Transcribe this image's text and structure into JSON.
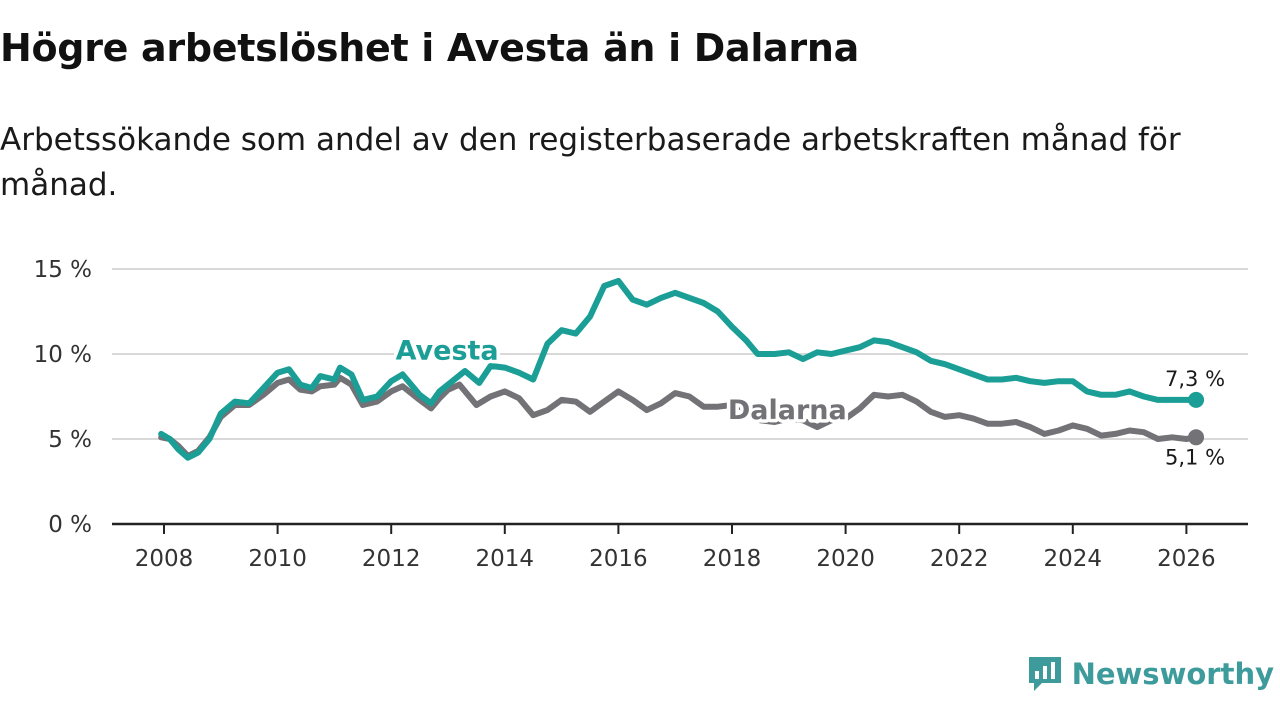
{
  "header": {
    "title": "Högre arbetslöshet i Avesta än i Dalarna",
    "subtitle": "Arbetssökande som andel av den registerbaserade arbetskraften månad för månad."
  },
  "brand": {
    "name": "Newsworthy",
    "icon": "newsworthy-logo-icon",
    "color": "#3e9b9c"
  },
  "chart_data": {
    "type": "line",
    "title": "Högre arbetslöshet i Avesta än i Dalarna",
    "subtitle": "Arbetssökande som andel av den registerbaserade arbetskraften månad för månad.",
    "xlabel": "",
    "ylabel": "",
    "xlim": [
      2008,
      2027
    ],
    "ylim": [
      0,
      15
    ],
    "x_ticks": [
      2008,
      2010,
      2012,
      2014,
      2016,
      2018,
      2020,
      2022,
      2024,
      2026
    ],
    "y_ticks": [
      0,
      5,
      10,
      15
    ],
    "y_tick_labels": [
      "0 %",
      "5 %",
      "10 %",
      "15 %"
    ],
    "grid": true,
    "legend": "inline labels",
    "series": [
      {
        "name": "Avesta",
        "color": "#1a9e96",
        "end_label": "7,3 %",
        "points": [
          [
            2007.95,
            5.3
          ],
          [
            2008.1,
            5.0
          ],
          [
            2008.25,
            4.4
          ],
          [
            2008.42,
            3.9
          ],
          [
            2008.6,
            4.2
          ],
          [
            2008.8,
            5.0
          ],
          [
            2009.0,
            6.5
          ],
          [
            2009.25,
            7.2
          ],
          [
            2009.5,
            7.1
          ],
          [
            2009.75,
            8.0
          ],
          [
            2010.0,
            8.9
          ],
          [
            2010.2,
            9.1
          ],
          [
            2010.4,
            8.2
          ],
          [
            2010.6,
            8.0
          ],
          [
            2010.75,
            8.7
          ],
          [
            2011.0,
            8.5
          ],
          [
            2011.1,
            9.2
          ],
          [
            2011.3,
            8.8
          ],
          [
            2011.5,
            7.3
          ],
          [
            2011.75,
            7.5
          ],
          [
            2012.0,
            8.4
          ],
          [
            2012.2,
            8.8
          ],
          [
            2012.5,
            7.6
          ],
          [
            2012.7,
            7.1
          ],
          [
            2012.85,
            7.8
          ],
          [
            2013.0,
            8.2
          ],
          [
            2013.3,
            9.0
          ],
          [
            2013.55,
            8.3
          ],
          [
            2013.75,
            9.3
          ],
          [
            2014.0,
            9.2
          ],
          [
            2014.25,
            8.9
          ],
          [
            2014.5,
            8.5
          ],
          [
            2014.75,
            10.6
          ],
          [
            2015.0,
            11.4
          ],
          [
            2015.25,
            11.2
          ],
          [
            2015.5,
            12.2
          ],
          [
            2015.75,
            14.0
          ],
          [
            2016.0,
            14.3
          ],
          [
            2016.25,
            13.2
          ],
          [
            2016.5,
            12.9
          ],
          [
            2016.75,
            13.3
          ],
          [
            2017.0,
            13.6
          ],
          [
            2017.5,
            13.0
          ],
          [
            2017.75,
            12.5
          ],
          [
            2018.0,
            11.6
          ],
          [
            2018.25,
            10.8
          ],
          [
            2018.45,
            10.0
          ],
          [
            2018.75,
            10.0
          ],
          [
            2019.0,
            10.1
          ],
          [
            2019.25,
            9.7
          ],
          [
            2019.5,
            10.1
          ],
          [
            2019.75,
            10.0
          ],
          [
            2020.0,
            10.2
          ],
          [
            2020.25,
            10.4
          ],
          [
            2020.5,
            10.8
          ],
          [
            2020.75,
            10.7
          ],
          [
            2021.0,
            10.4
          ],
          [
            2021.25,
            10.1
          ],
          [
            2021.5,
            9.6
          ],
          [
            2021.75,
            9.4
          ],
          [
            2022.0,
            9.1
          ],
          [
            2022.25,
            8.8
          ],
          [
            2022.5,
            8.5
          ],
          [
            2022.75,
            8.5
          ],
          [
            2023.0,
            8.6
          ],
          [
            2023.25,
            8.4
          ],
          [
            2023.5,
            8.3
          ],
          [
            2023.75,
            8.4
          ],
          [
            2024.0,
            8.4
          ],
          [
            2024.25,
            7.8
          ],
          [
            2024.5,
            7.6
          ],
          [
            2024.75,
            7.6
          ],
          [
            2025.0,
            7.8
          ],
          [
            2025.25,
            7.5
          ],
          [
            2025.5,
            7.3
          ],
          [
            2025.75,
            7.3
          ],
          [
            2026.0,
            7.3
          ],
          [
            2026.17,
            7.3
          ]
        ]
      },
      {
        "name": "Dalarna",
        "color": "#727277",
        "end_label": "5,1 %",
        "points": [
          [
            2007.95,
            5.1
          ],
          [
            2008.1,
            5.0
          ],
          [
            2008.25,
            4.6
          ],
          [
            2008.42,
            4.0
          ],
          [
            2008.6,
            4.3
          ],
          [
            2008.8,
            5.1
          ],
          [
            2009.0,
            6.3
          ],
          [
            2009.25,
            7.0
          ],
          [
            2009.5,
            7.0
          ],
          [
            2009.75,
            7.6
          ],
          [
            2010.0,
            8.3
          ],
          [
            2010.2,
            8.5
          ],
          [
            2010.4,
            7.9
          ],
          [
            2010.6,
            7.8
          ],
          [
            2010.75,
            8.1
          ],
          [
            2011.0,
            8.2
          ],
          [
            2011.1,
            8.6
          ],
          [
            2011.3,
            8.2
          ],
          [
            2011.5,
            7.0
          ],
          [
            2011.75,
            7.2
          ],
          [
            2012.0,
            7.8
          ],
          [
            2012.2,
            8.1
          ],
          [
            2012.5,
            7.3
          ],
          [
            2012.7,
            6.8
          ],
          [
            2012.85,
            7.4
          ],
          [
            2013.0,
            7.9
          ],
          [
            2013.2,
            8.2
          ],
          [
            2013.5,
            7.0
          ],
          [
            2013.75,
            7.5
          ],
          [
            2014.0,
            7.8
          ],
          [
            2014.25,
            7.4
          ],
          [
            2014.5,
            6.4
          ],
          [
            2014.75,
            6.7
          ],
          [
            2015.0,
            7.3
          ],
          [
            2015.25,
            7.2
          ],
          [
            2015.5,
            6.6
          ],
          [
            2015.75,
            7.2
          ],
          [
            2016.0,
            7.8
          ],
          [
            2016.25,
            7.3
          ],
          [
            2016.5,
            6.7
          ],
          [
            2016.75,
            7.1
          ],
          [
            2017.0,
            7.7
          ],
          [
            2017.25,
            7.5
          ],
          [
            2017.5,
            6.9
          ],
          [
            2017.75,
            6.9
          ],
          [
            2018.0,
            7.0
          ],
          [
            2018.25,
            6.8
          ],
          [
            2018.5,
            6.1
          ],
          [
            2018.75,
            6.0
          ],
          [
            2019.0,
            6.2
          ],
          [
            2019.25,
            6.1
          ],
          [
            2019.5,
            5.7
          ],
          [
            2019.75,
            6.1
          ],
          [
            2020.0,
            6.2
          ],
          [
            2020.25,
            6.8
          ],
          [
            2020.5,
            7.6
          ],
          [
            2020.75,
            7.5
          ],
          [
            2021.0,
            7.6
          ],
          [
            2021.25,
            7.2
          ],
          [
            2021.5,
            6.6
          ],
          [
            2021.75,
            6.3
          ],
          [
            2022.0,
            6.4
          ],
          [
            2022.25,
            6.2
          ],
          [
            2022.5,
            5.9
          ],
          [
            2022.75,
            5.9
          ],
          [
            2023.0,
            6.0
          ],
          [
            2023.25,
            5.7
          ],
          [
            2023.5,
            5.3
          ],
          [
            2023.75,
            5.5
          ],
          [
            2024.0,
            5.8
          ],
          [
            2024.25,
            5.6
          ],
          [
            2024.5,
            5.2
          ],
          [
            2024.75,
            5.3
          ],
          [
            2025.0,
            5.5
          ],
          [
            2025.25,
            5.4
          ],
          [
            2025.5,
            5.0
          ],
          [
            2025.75,
            5.1
          ],
          [
            2026.0,
            5.0
          ],
          [
            2026.17,
            5.1
          ]
        ]
      }
    ]
  }
}
